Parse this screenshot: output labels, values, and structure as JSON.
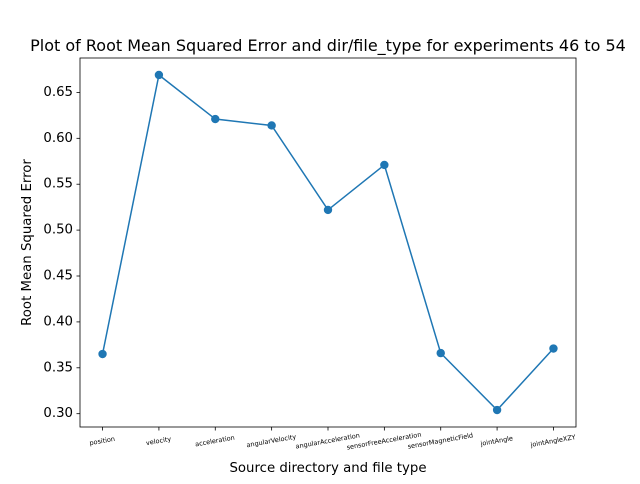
{
  "chart_data": {
    "type": "line",
    "title": "Plot of Root Mean Squared Error and dir/file_type for experiments 46 to 54",
    "xlabel": "Source directory and file type",
    "ylabel": "Root Mean Squared Error",
    "categories": [
      "position",
      "velocity",
      "acceleration",
      "angularVelocity",
      "angularAcceleration",
      "sensorFreeAcceleration",
      "sensorMagneticField",
      "jointAngle",
      "jointAngleXZY"
    ],
    "values": [
      0.365,
      0.669,
      0.621,
      0.614,
      0.522,
      0.571,
      0.366,
      0.304,
      0.371
    ],
    "ylim": [
      0.2855,
      0.6875
    ],
    "yticks": [
      0.3,
      0.35,
      0.4,
      0.45,
      0.5,
      0.55,
      0.6,
      0.65
    ],
    "ytick_labels": [
      "0.30",
      "0.35",
      "0.40",
      "0.45",
      "0.50",
      "0.55",
      "0.60",
      "0.65"
    ],
    "grid": false,
    "color": "#1f77b4"
  }
}
